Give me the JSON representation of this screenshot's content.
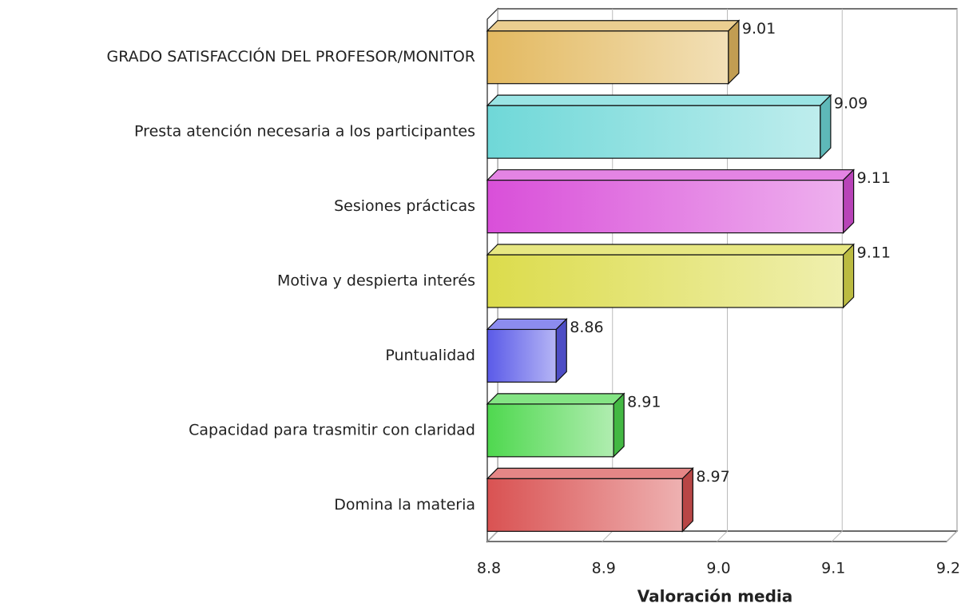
{
  "chart_data": {
    "type": "bar",
    "orientation": "horizontal",
    "x_label": "Valoración media",
    "categories": [
      "GRADO SATISFACCIÓN DEL PROFESOR/MONITOR",
      "Presta atención necesaria a los participantes",
      "Sesiones prácticas",
      "Motiva y despierta interés",
      "Puntualidad",
      "Capacidad para trasmitir con claridad",
      "Domina la materia"
    ],
    "values": [
      9.01,
      9.09,
      9.11,
      9.11,
      8.86,
      8.91,
      8.97
    ],
    "colors": [
      "#e3b960",
      "#6fd8d8",
      "#d94fd9",
      "#dcdc4c",
      "#5a5ae8",
      "#4fd84f",
      "#d95252"
    ],
    "xlim": [
      8.8,
      9.2
    ],
    "xticks": [
      8.8,
      8.9,
      {
        "value": 9,
        "label": "9.0"
      },
      9.1,
      9.2
    ],
    "grid": true
  }
}
